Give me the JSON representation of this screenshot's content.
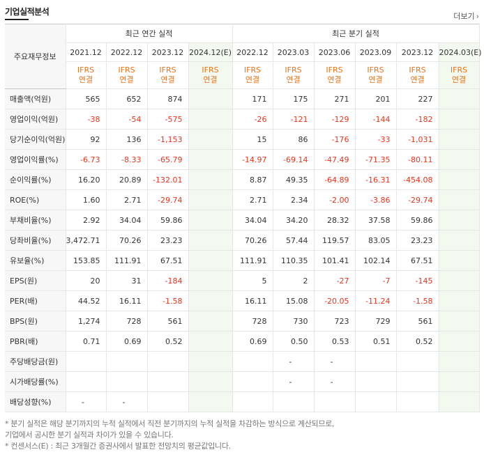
{
  "title": "기업실적분석",
  "more_label": "더보기",
  "header": {
    "row_label": "주요재무정보",
    "annual_title": "최근 연간 실적",
    "quarter_title": "최근 분기 실적",
    "annual_periods": [
      "2021.12",
      "2022.12",
      "2023.12",
      "2024.12(E)"
    ],
    "quarter_periods": [
      "2022.12",
      "2023.03",
      "2023.06",
      "2023.09",
      "2023.12",
      "2024.03(E)"
    ],
    "ifrs": "IFRS",
    "consolidated": "연결"
  },
  "rows": [
    {
      "label": "매출액(억원)",
      "values": [
        "565",
        "652",
        "874",
        "",
        "171",
        "175",
        "271",
        "201",
        "227",
        ""
      ]
    },
    {
      "label": "영업이익(억원)",
      "values": [
        "-38",
        "-54",
        "-575",
        "",
        "-26",
        "-121",
        "-129",
        "-144",
        "-182",
        ""
      ]
    },
    {
      "label": "당기순이익(억원)",
      "values": [
        "92",
        "136",
        "-1,153",
        "",
        "15",
        "86",
        "-176",
        "-33",
        "-1,031",
        ""
      ]
    },
    {
      "label": "영업이익률(%)",
      "values": [
        "-6.73",
        "-8.33",
        "-65.79",
        "",
        "-14.97",
        "-69.14",
        "-47.49",
        "-71.35",
        "-80.11",
        ""
      ]
    },
    {
      "label": "순이익률(%)",
      "values": [
        "16.20",
        "20.89",
        "-132.01",
        "",
        "8.87",
        "49.35",
        "-64.89",
        "-16.31",
        "-454.08",
        ""
      ]
    },
    {
      "label": "ROE(%)",
      "values": [
        "1.60",
        "2.71",
        "-29.74",
        "",
        "2.71",
        "2.34",
        "-2.00",
        "-3.86",
        "-29.74",
        ""
      ]
    },
    {
      "label": "부채비율(%)",
      "values": [
        "2.92",
        "34.04",
        "59.86",
        "",
        "34.04",
        "34.20",
        "28.32",
        "37.58",
        "59.86",
        ""
      ]
    },
    {
      "label": "당좌비율(%)",
      "values": [
        "3,472.71",
        "70.26",
        "23.23",
        "",
        "70.26",
        "57.44",
        "119.57",
        "83.05",
        "23.23",
        ""
      ]
    },
    {
      "label": "유보율(%)",
      "values": [
        "153.85",
        "111.91",
        "67.51",
        "",
        "111.91",
        "110.35",
        "101.41",
        "102.14",
        "67.51",
        ""
      ]
    },
    {
      "label": "EPS(원)",
      "values": [
        "20",
        "31",
        "-184",
        "",
        "5",
        "2",
        "-27",
        "-7",
        "-145",
        ""
      ]
    },
    {
      "label": "PER(배)",
      "values": [
        "44.52",
        "16.11",
        "-1.58",
        "",
        "16.11",
        "15.08",
        "-20.05",
        "-11.24",
        "-1.58",
        ""
      ]
    },
    {
      "label": "BPS(원)",
      "values": [
        "1,274",
        "728",
        "561",
        "",
        "728",
        "730",
        "723",
        "729",
        "561",
        ""
      ]
    },
    {
      "label": "PBR(배)",
      "values": [
        "0.71",
        "0.69",
        "0.52",
        "",
        "0.69",
        "0.50",
        "0.53",
        "0.51",
        "0.52",
        ""
      ]
    },
    {
      "label": "주당배당금(원)",
      "values": [
        "",
        "",
        "",
        "",
        "",
        "-",
        "-",
        "",
        "",
        ""
      ]
    },
    {
      "label": "시가배당률(%)",
      "values": [
        "",
        "",
        "",
        "",
        "",
        "-",
        "-",
        "",
        "",
        ""
      ]
    },
    {
      "label": "배당성향(%)",
      "values": [
        "-",
        "-",
        "",
        "",
        "",
        "",
        "",
        "",
        "",
        ""
      ]
    }
  ],
  "notes": [
    "* 분기 실적은 해당 분기까지의 누적 실적에서 직전 분기까지의 누적 실적을 차감하는 방식으로 계산되므로,",
    "   기업에서 공시한 분기 실적과 차이가 있을 수 있습니다.",
    "* 컨센서스(E) : 최근 3개월간 증권사에서 발표한 전망치의 평균값입니다."
  ]
}
